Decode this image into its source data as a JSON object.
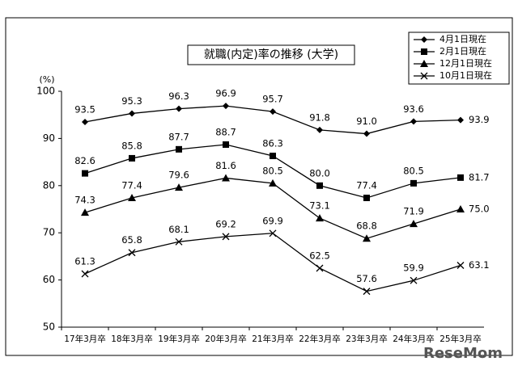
{
  "chart_data": {
    "type": "line",
    "title": "就職(内定)率の推移 (大学)",
    "ylabel": "(%)",
    "watermark": "ReseMom",
    "categories": [
      "17年3月卒",
      "18年3月卒",
      "19年3月卒",
      "20年3月卒",
      "21年3月卒",
      "22年3月卒",
      "23年3月卒",
      "24年3月卒",
      "25年3月卒"
    ],
    "ylim": [
      50,
      100
    ],
    "yticks": [
      50,
      60,
      70,
      80,
      90,
      100
    ],
    "legend": "top-right",
    "series": [
      {
        "name": "4月1日現在",
        "color": "#000000",
        "marker": "diamond",
        "values": [
          93.5,
          95.3,
          96.3,
          96.9,
          95.7,
          91.8,
          91.0,
          93.6,
          93.9
        ],
        "value_labels": [
          "93.5",
          "95.3",
          "96.3",
          "96.9",
          "95.7",
          "91.8",
          "91.0",
          "93.6",
          "93.9"
        ]
      },
      {
        "name": "2月1日現在",
        "color": "#000000",
        "marker": "square",
        "values": [
          82.6,
          85.8,
          87.7,
          88.7,
          86.3,
          80.0,
          77.4,
          80.5,
          81.7
        ],
        "value_labels": [
          "82.6",
          "85.8",
          "87.7",
          "88.7",
          "86.3",
          "80.0",
          "77.4",
          "80.5",
          "81.7"
        ]
      },
      {
        "name": "12月1日現在",
        "color": "#000000",
        "marker": "triangle",
        "values": [
          74.3,
          77.4,
          79.6,
          81.6,
          80.5,
          73.1,
          68.8,
          71.9,
          75.0
        ],
        "value_labels": [
          "74.3",
          "77.4",
          "79.6",
          "81.6",
          "80.5",
          "73.1",
          "68.8",
          "71.9",
          "75.0"
        ]
      },
      {
        "name": "10月1日現在",
        "color": "#000000",
        "marker": "cross",
        "values": [
          61.3,
          65.8,
          68.1,
          69.2,
          69.9,
          62.5,
          57.6,
          59.9,
          63.1
        ],
        "value_labels": [
          "61.3",
          "65.8",
          "68.1",
          "69.2",
          "69.9",
          "62.5",
          "57.6",
          "59.9",
          "63.1"
        ]
      }
    ]
  }
}
